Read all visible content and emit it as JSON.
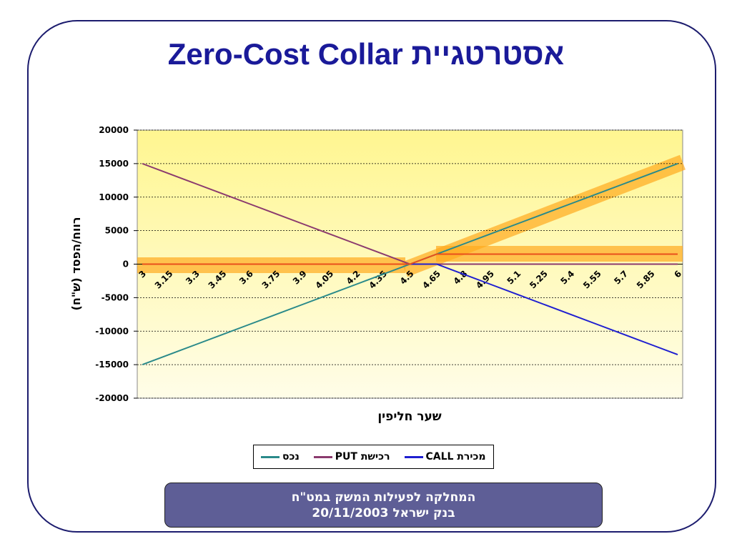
{
  "chart_data": {
    "type": "line",
    "title": "אסטרטגיית Zero-Cost Collar",
    "x_label": "שער חליפין",
    "y_label": "רווח/הפסד (ש\"ח)",
    "categories": [
      "3",
      "3.15",
      "3.3",
      "3.45",
      "3.6",
      "3.75",
      "3.9",
      "4.05",
      "4.2",
      "4.35",
      "4.5",
      "4.65",
      "4.8",
      "4.95",
      "5.1",
      "5.25",
      "5.4",
      "5.55",
      "5.7",
      "5.85",
      "6"
    ],
    "series": [
      {
        "name": "נכס",
        "color": "#2a8a8a",
        "values": [
          -15000,
          -13500,
          -12000,
          -10500,
          -9000,
          -7500,
          -6000,
          -4500,
          -3000,
          -1500,
          0,
          1500,
          3000,
          4500,
          6000,
          7500,
          9000,
          10500,
          12000,
          13500,
          15000
        ]
      },
      {
        "name": "רכישת PUT",
        "color": "#8b3a6e",
        "values": [
          15000,
          13500,
          12000,
          10500,
          9000,
          7500,
          6000,
          4500,
          3000,
          1500,
          0,
          0,
          0,
          0,
          0,
          0,
          0,
          0,
          0,
          0,
          0
        ]
      },
      {
        "name": "מכירת CALL",
        "color": "#1f1fd0",
        "values": [
          0,
          0,
          0,
          0,
          0,
          0,
          0,
          0,
          0,
          0,
          0,
          0,
          -1500,
          -3000,
          -4500,
          -6000,
          -7500,
          -9000,
          -10500,
          -12000,
          -13500
        ]
      },
      {
        "color": "#e8501c",
        "values": [
          0,
          0,
          0,
          0,
          0,
          0,
          0,
          0,
          0,
          0,
          0,
          1500,
          1500,
          1500,
          1500,
          1500,
          1500,
          1500,
          1500,
          1500,
          1500
        ]
      }
    ],
    "ylim": [
      -20000,
      20000
    ],
    "yticks": [
      -20000,
      -15000,
      -10000,
      -5000,
      0,
      5000,
      10000,
      15000,
      20000
    ],
    "grid": true
  },
  "footer": {
    "lines": [
      "המחלקה לפעילות המשק במט\"ח",
      "בנק ישראל  20/11/2003"
    ]
  }
}
